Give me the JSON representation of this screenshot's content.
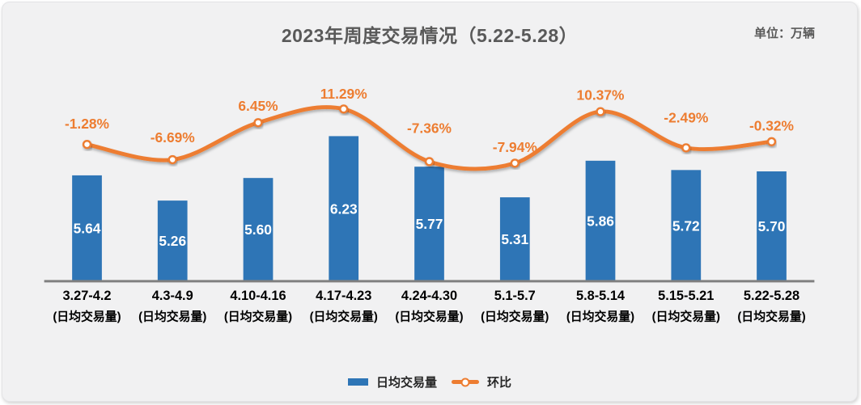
{
  "chart_data": {
    "type": "bar+line",
    "title": "2023年周度交易情况（5.22-5.28）",
    "unit_label": "单位：万辆",
    "categories": [
      "3.27-4.2",
      "4.3-4.9",
      "4.10-4.16",
      "4.17-4.23",
      "4.24-4.30",
      "5.1-5.7",
      "5.8-5.14",
      "5.15-5.21",
      "5.22-5.28"
    ],
    "category_sublabel": "(日均交易量)",
    "series": [
      {
        "name": "日均交易量",
        "type": "bar",
        "color": "#2E75B6",
        "values": [
          5.64,
          5.26,
          5.6,
          6.23,
          5.77,
          5.31,
          5.86,
          5.72,
          5.7
        ],
        "value_labels": [
          "5.64",
          "5.26",
          "5.60",
          "6.23",
          "5.77",
          "5.31",
          "5.86",
          "5.72",
          "5.70"
        ],
        "label_color": "#FFFFFF"
      },
      {
        "name": "环比",
        "type": "line",
        "color": "#ED7D31",
        "marker": "circle-open",
        "values": [
          -1.28,
          -6.69,
          6.45,
          11.29,
          -7.36,
          -7.94,
          10.37,
          -2.49,
          -0.32
        ],
        "value_labels": [
          "-1.28%",
          "-6.69%",
          "6.45%",
          "11.29%",
          "-7.36%",
          "-7.94%",
          "10.37%",
          "-2.49%",
          "-0.32%"
        ]
      }
    ],
    "legend": [
      {
        "label": "日均交易量",
        "swatch": "bar"
      },
      {
        "label": "环比",
        "swatch": "line-marker"
      }
    ],
    "legend_position": "bottom-center",
    "axes": {
      "x": {
        "visible": true,
        "line_color": "#808080",
        "label_color": "#000000",
        "gridlines": false
      },
      "y_bar": {
        "visible": false,
        "approx_min": 4.0
      },
      "y_pct": {
        "visible": false
      }
    },
    "pct_label_offsets": [
      26,
      28,
      21,
      19,
      42,
      20,
      21,
      38,
      20
    ]
  },
  "colors": {
    "card_background": "#F1F1F2",
    "bar": "#2E75B6",
    "line": "#ED7D31",
    "title": "#595959",
    "axis_line": "#808080",
    "axis_label": "#000000",
    "bar_value_label": "#FFFFFF"
  }
}
